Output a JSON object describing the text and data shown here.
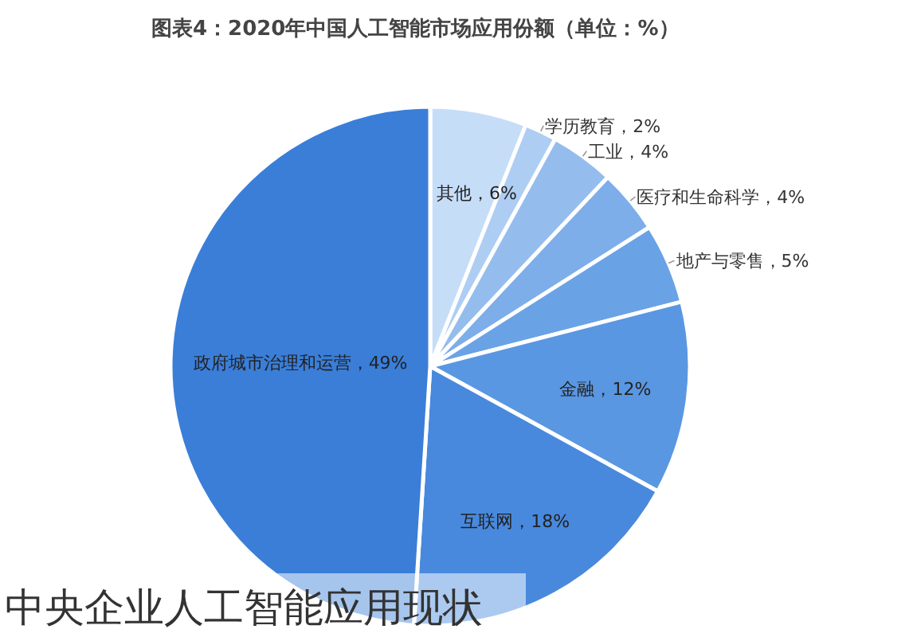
{
  "chart_data": {
    "type": "pie",
    "title": "图表4：2020年中国人工智能市场应用份额（单位：%）",
    "categories": [
      "其他",
      "学历教育",
      "工业",
      "医疗和生命科学",
      "地产与零售",
      "金融",
      "互联网",
      "政府城市治理和运营"
    ],
    "values": [
      6,
      2,
      4,
      4,
      5,
      12,
      18,
      49
    ],
    "value_labels": [
      "6%",
      "2%",
      "4%",
      "4%",
      "5%",
      "12%",
      "18%",
      "49%"
    ],
    "colors": [
      "#c6ddf8",
      "#aecdf3",
      "#94bdee",
      "#7daee9",
      "#6aa2e6",
      "#5a97e2",
      "#4889dd",
      "#3a7ed8"
    ],
    "annotations": [
      "中央企业人工智能应用现状"
    ]
  }
}
